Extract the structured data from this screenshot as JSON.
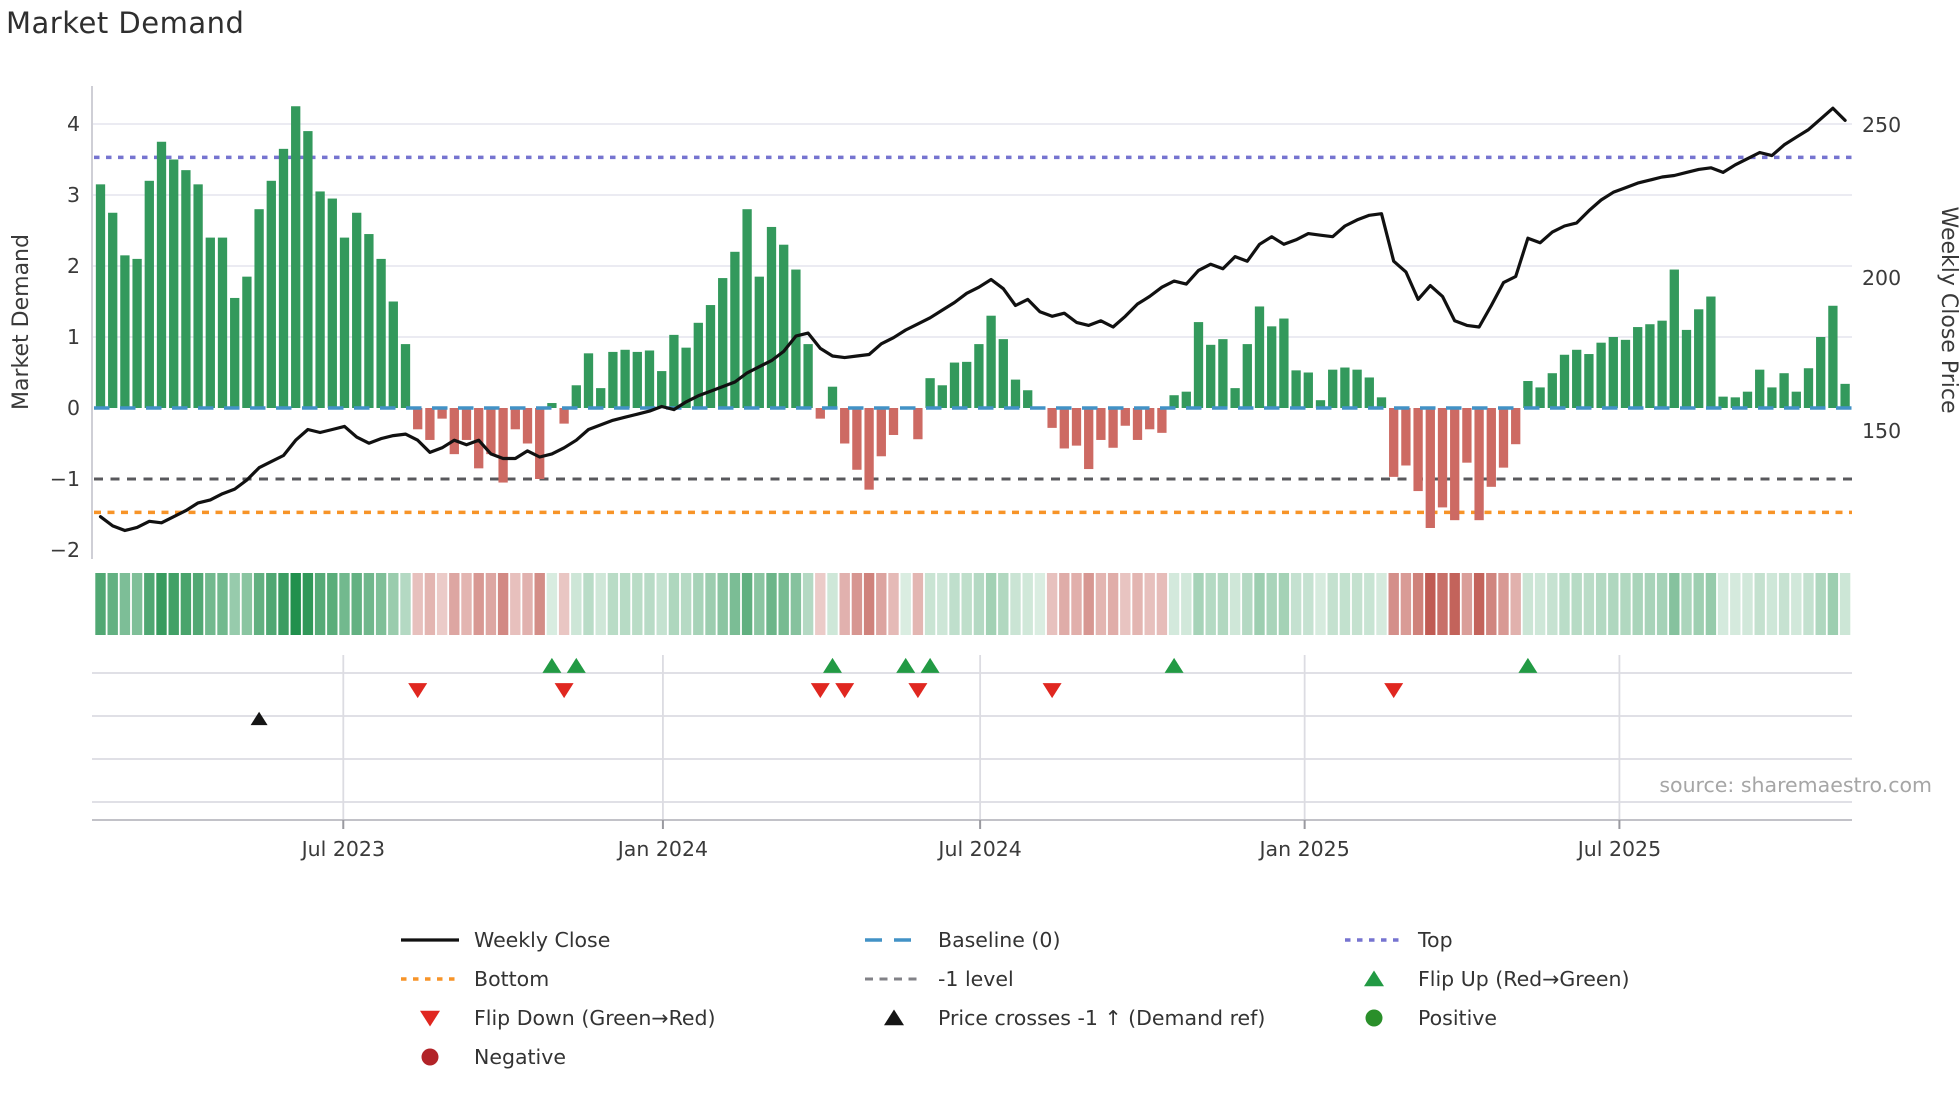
{
  "title": "Market Demand",
  "source_text": "source: sharemaestro.com",
  "axes": {
    "left_label": "Market Demand",
    "right_label": "Weekly Close Price",
    "left_ticks": [
      "4",
      "3",
      "2",
      "1",
      "0",
      "−1",
      "−2"
    ],
    "left_tick_values": [
      4,
      3,
      2,
      1,
      0,
      -1,
      -2
    ],
    "right_ticks": [
      "250",
      "200",
      "150"
    ],
    "right_tick_values": [
      250,
      200,
      150
    ],
    "x_ticks": [
      "Jul 2023",
      "Jan 2024",
      "Jul 2024",
      "Jan 2025",
      "Jul 2025"
    ]
  },
  "colors": {
    "bar_positive": "#33995c",
    "bar_negative": "#cd6a63",
    "heat_positive": "#1f8f4b",
    "heat_negative": "#c05a52",
    "price_line": "#111111",
    "baseline_blue": "#4292c6",
    "top_purple": "#7674d0",
    "bottom_orange": "#f79428",
    "minus_one_gray": "#58585c",
    "flip_up_green": "#229a44",
    "flip_down_red": "#e02720",
    "cross_black": "#151515",
    "positive_circle": "#2a8f2a",
    "negative_circle": "#b22328",
    "grid": "#ebebf2",
    "panel_grid": "#dcdce2",
    "spine": "#cfcfd6",
    "tick_text": "#3a3a3a",
    "source_text": "#a6a6a6"
  },
  "chart_data": {
    "type": "bar",
    "title": "Market Demand",
    "xlabel": "",
    "ylabel": "Market Demand",
    "y2label": "Weekly Close Price",
    "left_ylim": [
      -2.15,
      4.55
    ],
    "right_ylim": [
      118,
      262
    ],
    "grid": true,
    "legend_position": "bottom",
    "x_tick_labels": [
      "Jul 2023",
      "Jan 2024",
      "Jul 2024",
      "Jan 2025",
      "Jul 2025"
    ],
    "x_tick_weeks": [
      19.9,
      46.1,
      72.1,
      98.7,
      124.5
    ],
    "reference_lines": {
      "top": 3.53,
      "baseline": 0,
      "minus_one": -1,
      "bottom": -1.47
    },
    "series": [
      {
        "name": "Market Demand (weekly bars)",
        "values": [
          3.15,
          2.75,
          2.15,
          2.1,
          3.2,
          3.75,
          3.5,
          3.35,
          3.15,
          2.4,
          2.4,
          1.55,
          1.85,
          2.8,
          3.2,
          3.65,
          4.25,
          3.9,
          3.05,
          2.95,
          2.4,
          2.75,
          2.45,
          2.1,
          1.5,
          0.9,
          -0.3,
          -0.45,
          -0.15,
          -0.65,
          -0.45,
          -0.85,
          -0.65,
          -1.05,
          -0.3,
          -0.5,
          -1.0,
          0.07,
          -0.22,
          0.32,
          0.77,
          0.28,
          0.79,
          0.82,
          0.79,
          0.81,
          0.52,
          1.03,
          0.85,
          1.2,
          1.45,
          1.83,
          2.2,
          2.8,
          1.85,
          2.55,
          2.3,
          1.95,
          0.9,
          -0.15,
          0.3,
          -0.5,
          -0.87,
          -1.15,
          -0.68,
          -0.38,
          0.02,
          -0.44,
          0.42,
          0.32,
          0.64,
          0.65,
          0.9,
          1.3,
          0.97,
          0.4,
          0.25,
          0.02,
          -0.28,
          -0.57,
          -0.53,
          -0.86,
          -0.45,
          -0.56,
          -0.25,
          -0.45,
          -0.3,
          -0.35,
          0.18,
          0.23,
          1.21,
          0.89,
          0.97,
          0.28,
          0.9,
          1.43,
          1.15,
          1.26,
          0.53,
          0.5,
          0.11,
          0.54,
          0.57,
          0.54,
          0.43,
          0.15,
          -0.97,
          -0.81,
          -1.17,
          -1.69,
          -1.4,
          -1.58,
          -0.77,
          -1.58,
          -1.11,
          -0.84,
          -0.51,
          0.38,
          0.29,
          0.49,
          0.75,
          0.82,
          0.76,
          0.92,
          1.0,
          0.96,
          1.14,
          1.18,
          1.23,
          1.95,
          1.1,
          1.39,
          1.57,
          0.16,
          0.15,
          0.23,
          0.54,
          0.29,
          0.49,
          0.23,
          0.56,
          1.0,
          1.44,
          0.34
        ]
      },
      {
        "name": "Weekly Close",
        "values": [
          122,
          119,
          117.5,
          118.5,
          120.5,
          120,
          122,
          124,
          126.5,
          127.5,
          129.5,
          131,
          134,
          138,
          140,
          142,
          147,
          150.5,
          149.5,
          150.5,
          151.5,
          148,
          146,
          147.5,
          148.5,
          149,
          147,
          143,
          144.5,
          147,
          145.5,
          147,
          142.5,
          141,
          141,
          143.5,
          141.5,
          142.5,
          144.5,
          147,
          150.5,
          152,
          153.5,
          154.5,
          155.5,
          156.5,
          158,
          157,
          159.5,
          161.5,
          163,
          164.5,
          166,
          169,
          171,
          173,
          176,
          181,
          182,
          177,
          174.5,
          174,
          174.5,
          175,
          178.5,
          180.5,
          183,
          185,
          187,
          189.5,
          192,
          195,
          197,
          199.5,
          196.5,
          191,
          193,
          189,
          187.5,
          188.5,
          185.5,
          184.5,
          186,
          184,
          187.5,
          191.5,
          194,
          197,
          199,
          198,
          202.5,
          204.5,
          203,
          207,
          205.5,
          211,
          213.5,
          211,
          212.5,
          214.5,
          214,
          213.5,
          217,
          219,
          220.5,
          221,
          205.5,
          202,
          193,
          197.5,
          194,
          186,
          184.5,
          184,
          191,
          198.5,
          200.5,
          213,
          211.5,
          215,
          217,
          218,
          222,
          225.5,
          228,
          229.5,
          231,
          232,
          233,
          233.5,
          234.5,
          235.5,
          236,
          234.5,
          237,
          239,
          241,
          240,
          243.5,
          246,
          248.5,
          252,
          255.5,
          251.5
        ]
      }
    ],
    "flip_up_weeks": [
      37,
      39,
      60,
      66,
      68,
      88,
      117
    ],
    "flip_down_weeks": [
      26,
      38,
      59,
      61,
      67,
      78,
      106
    ],
    "price_cross_weeks": [
      13
    ]
  },
  "legend": {
    "items": [
      {
        "column": 0,
        "row": 0,
        "type": "solid-line",
        "color": "#111111",
        "label": "Weekly Close"
      },
      {
        "column": 0,
        "row": 1,
        "type": "dot",
        "color": "#f79428",
        "label": "Bottom"
      },
      {
        "column": 0,
        "row": 2,
        "type": "triangle-down",
        "color": "#e02720",
        "label": "Flip Down (Green→Red)"
      },
      {
        "column": 0,
        "row": 3,
        "type": "circle",
        "color": "#b22328",
        "label": "Negative"
      },
      {
        "column": 1,
        "row": 0,
        "type": "long-dash",
        "color": "#4292c6",
        "label": "Baseline (0)"
      },
      {
        "column": 1,
        "row": 1,
        "type": "dash",
        "color": "#828287",
        "label": "-1 level"
      },
      {
        "column": 1,
        "row": 2,
        "type": "triangle-up",
        "color": "#151515",
        "label": "Price crosses -1 ↑ (Demand ref)"
      },
      {
        "column": 2,
        "row": 0,
        "type": "dot",
        "color": "#7674d0",
        "label": "Top"
      },
      {
        "column": 2,
        "row": 1,
        "type": "triangle-up",
        "color": "#229a44",
        "label": "Flip Up (Red→Green)"
      },
      {
        "column": 2,
        "row": 2,
        "type": "circle",
        "color": "#2a8f2a",
        "label": "Positive"
      }
    ]
  }
}
